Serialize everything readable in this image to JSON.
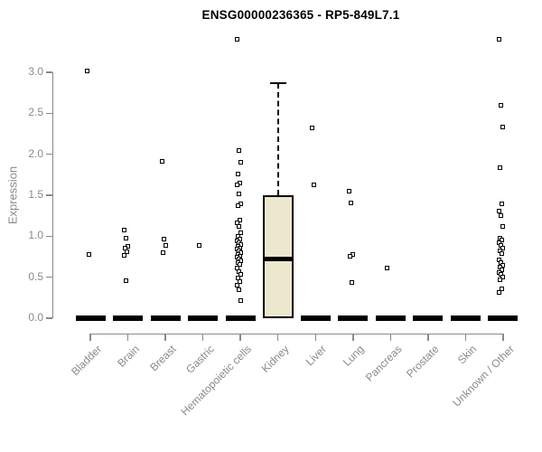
{
  "chart_data": {
    "type": "boxplot",
    "title": "ENSG00000236365 - RP5-849L7.1",
    "ylabel": "Expression",
    "xlabel": "",
    "ylim": [
      0,
      3.4
    ],
    "yticks": [
      "0.0",
      "0.5",
      "1.0",
      "1.5",
      "2.0",
      "2.5",
      "3.0"
    ],
    "ytick_values": [
      0,
      0.5,
      1.0,
      1.5,
      2.0,
      2.5,
      3.0
    ],
    "grid": "off",
    "legend": "none",
    "categories": [
      "Bladder",
      "Brain",
      "Breast",
      "Gastric",
      "Hematopoietic cells",
      "Kidney",
      "Liver",
      "Lung",
      "Pancreas",
      "Prostate",
      "Skin",
      "Unknown / Other"
    ],
    "boxes": [
      {
        "category": "Bladder",
        "q1": 0,
        "median": 0,
        "q3": 0,
        "whisker_low": 0,
        "whisker_high": 0,
        "points": [
          3.02,
          0.78
        ]
      },
      {
        "category": "Brain",
        "q1": 0,
        "median": 0,
        "q3": 0,
        "whisker_low": 0,
        "whisker_high": 0,
        "points": [
          1.07,
          0.98,
          0.88,
          0.85,
          0.81,
          0.77,
          0.46
        ]
      },
      {
        "category": "Breast",
        "q1": 0,
        "median": 0,
        "q3": 0,
        "whisker_low": 0,
        "whisker_high": 0,
        "points": [
          1.91,
          0.97,
          0.89,
          0.8
        ]
      },
      {
        "category": "Gastric",
        "q1": 0,
        "median": 0,
        "q3": 0,
        "whisker_low": 0,
        "whisker_high": 0,
        "points": [
          0.89
        ]
      },
      {
        "category": "Hematopoietic cells",
        "q1": 0,
        "median": 0,
        "q3": 0,
        "whisker_low": 0,
        "whisker_high": 0,
        "points": [
          3.4,
          2.05,
          1.9,
          1.76,
          1.65,
          1.63,
          1.52,
          1.39,
          1.37,
          1.2,
          1.16,
          1.12,
          1.04,
          1.0,
          0.97,
          0.94,
          0.92,
          0.9,
          0.88,
          0.86,
          0.84,
          0.82,
          0.8,
          0.78,
          0.76,
          0.74,
          0.72,
          0.7,
          0.68,
          0.66,
          0.61,
          0.57,
          0.53,
          0.49,
          0.45,
          0.4,
          0.35,
          0.22
        ]
      },
      {
        "category": "Kidney",
        "q1": 0,
        "median": 0.72,
        "q3": 1.5,
        "whisker_low": 0,
        "whisker_high": 2.87,
        "points": []
      },
      {
        "category": "Liver",
        "q1": 0,
        "median": 0,
        "q3": 0,
        "whisker_low": 0,
        "whisker_high": 0,
        "points": [
          2.32,
          1.63
        ]
      },
      {
        "category": "Lung",
        "q1": 0,
        "median": 0,
        "q3": 0,
        "whisker_low": 0,
        "whisker_high": 0,
        "points": [
          1.55,
          1.41,
          0.78,
          0.76,
          0.44
        ]
      },
      {
        "category": "Pancreas",
        "q1": 0,
        "median": 0,
        "q3": 0,
        "whisker_low": 0,
        "whisker_high": 0,
        "points": [
          0.61
        ]
      },
      {
        "category": "Prostate",
        "q1": 0,
        "median": 0,
        "q3": 0,
        "whisker_low": 0,
        "whisker_high": 0,
        "points": []
      },
      {
        "category": "Skin",
        "q1": 0,
        "median": 0,
        "q3": 0,
        "whisker_low": 0,
        "whisker_high": 0,
        "points": []
      },
      {
        "category": "Unknown / Other",
        "q1": 0,
        "median": 0,
        "q3": 0,
        "whisker_low": 0,
        "whisker_high": 0,
        "points": [
          3.4,
          2.6,
          2.33,
          1.84,
          1.39,
          1.31,
          1.25,
          1.12,
          0.98,
          0.95,
          0.92,
          0.89,
          0.86,
          0.82,
          0.79,
          0.71,
          0.68,
          0.65,
          0.62,
          0.59,
          0.56,
          0.53,
          0.5,
          0.47,
          0.36,
          0.31
        ]
      }
    ],
    "colors": {
      "box_fill": "#EDE8CD",
      "box_border": "#000000",
      "median_color": "#000000",
      "point_color": "#000000",
      "zero_bar_color": "#000000",
      "axis_color": "#8A8A8A",
      "tick_text_color": "#8A8A8A",
      "title_color": "#000000",
      "background": "#FFFFFF"
    }
  }
}
